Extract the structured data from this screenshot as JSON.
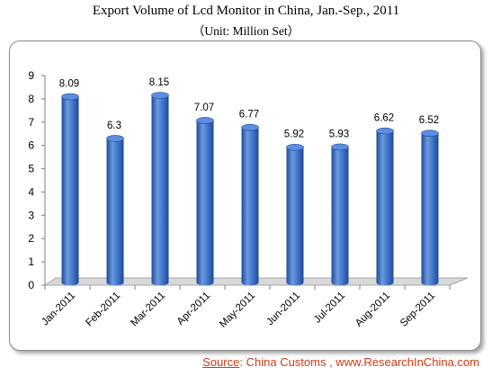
{
  "title": "Export Volume of Lcd Monitor in China, Jan.-Sep., 2011",
  "subtitle": "（Unit: Million Set）",
  "source": {
    "label": "Source",
    "separator": ":",
    "text": "China Customs , www.ResearchInChina.com"
  },
  "colors": {
    "bar_light": "#6a9be0",
    "bar_mid": "#3d6fc4",
    "bar_dark": "#1e4a96",
    "bar_top": "#5b8ee0",
    "floor": "#d9d9d9",
    "source_text": "#d03a10"
  },
  "chart_data": {
    "type": "bar",
    "style": "3d-cylinder",
    "categories": [
      "Jan-2011",
      "Feb-2011",
      "Mar-2011",
      "Apr-2011",
      "May-2011",
      "Jun-2011",
      "Jul-2011",
      "Aug-2011",
      "Sep-2011"
    ],
    "values": [
      8.09,
      6.3,
      8.15,
      7.07,
      6.77,
      5.92,
      5.93,
      6.62,
      6.52
    ],
    "value_labels": [
      "8.09",
      "6.3",
      "8.15",
      "7.07",
      "6.77",
      "5.92",
      "5.93",
      "6.62",
      "6.52"
    ],
    "ylim": [
      0,
      9
    ],
    "yticks": [
      "0",
      "1",
      "2",
      "3",
      "4",
      "5",
      "6",
      "7",
      "8",
      "9"
    ],
    "grid": false,
    "legend": "none"
  }
}
